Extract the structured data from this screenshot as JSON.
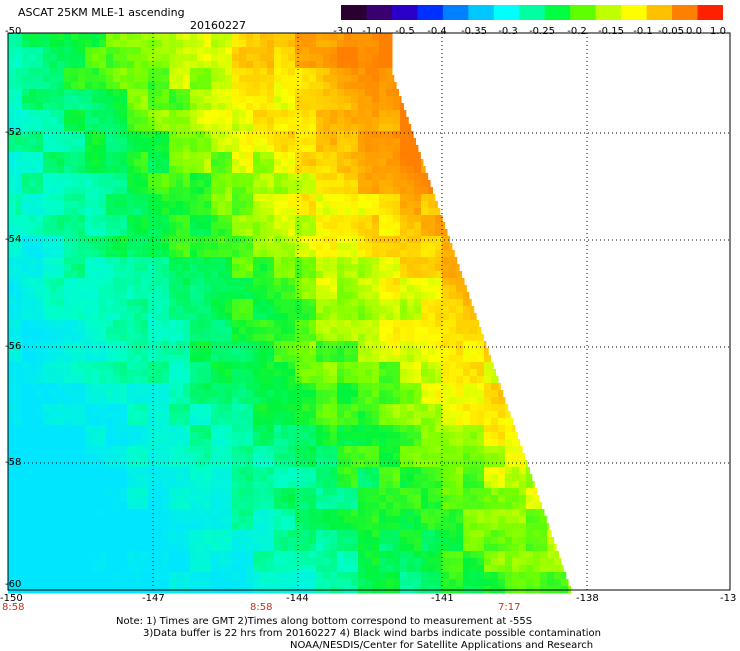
{
  "header": {
    "title": "ASCAT 25KM MLE-1 ascending",
    "date": "20160227"
  },
  "colorbar": {
    "labels": [
      "-3.0",
      "-1.0",
      "-0.5",
      "-0.4",
      "-0.35",
      "-0.3",
      "-0.25",
      "-0.2",
      "-0.15",
      "-0.1",
      "-0.05",
      "0.0",
      "1.0"
    ],
    "colors": [
      "#2a0030",
      "#3a0070",
      "#2a00c8",
      "#0030ff",
      "#0080ff",
      "#00c8ff",
      "#00ffff",
      "#00ffa0",
      "#00ff40",
      "#60ff00",
      "#c0ff00",
      "#ffff00",
      "#ffc000",
      "#ff8000",
      "#ff2000"
    ]
  },
  "axes": {
    "lat_labels": [
      "-50",
      "-52",
      "-54",
      "-56",
      "-58",
      "-60"
    ],
    "lon_labels": [
      "-150",
      "-147",
      "-144",
      "-141",
      "-138",
      "-13"
    ]
  },
  "times": [
    "8:58",
    "8:58",
    "7:17"
  ],
  "notes": [
    "Note: 1) Times are GMT 2)Times along bottom correspond to measurement at -55S",
    "3)Data buffer is 22 hrs from 20160227 4) Black wind barbs indicate possible contamination",
    "NOAA/NESDIS/Center for Satellite Applications and Research"
  ]
}
